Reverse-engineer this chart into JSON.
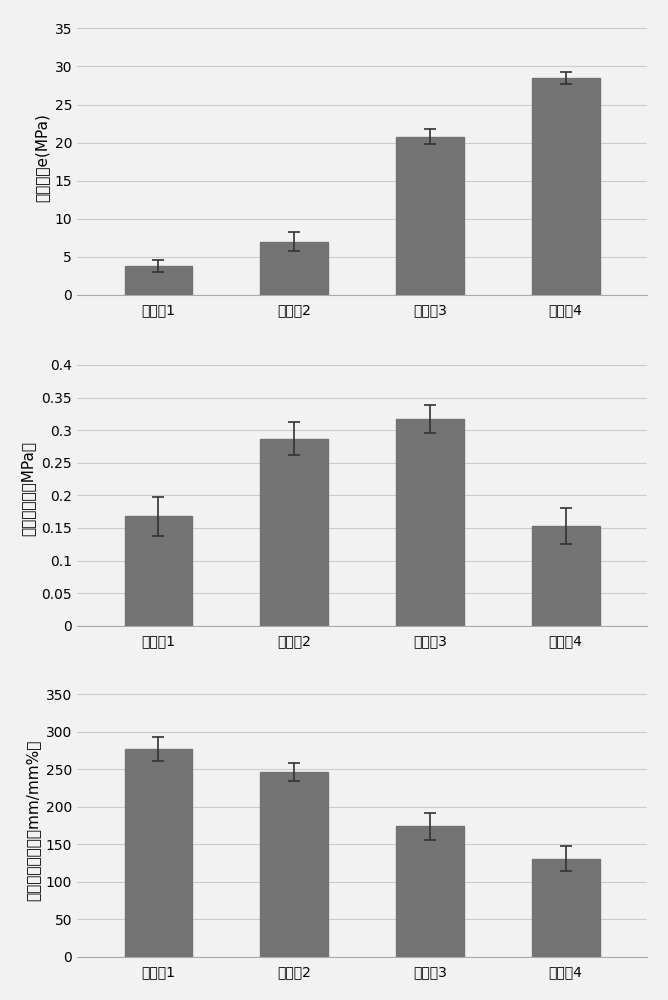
{
  "categories": [
    "实施例1",
    "实施例2",
    "实施例3",
    "实施例4"
  ],
  "chart1": {
    "values": [
      3.8,
      7.0,
      20.8,
      28.5
    ],
    "errors": [
      0.8,
      1.2,
      1.0,
      0.8
    ],
    "ylabel": "弹性模量e(MPa)",
    "yticks": [
      0,
      5,
      10,
      15,
      20,
      25,
      30,
      35
    ],
    "ylim": [
      0,
      36
    ]
  },
  "chart2": {
    "values": [
      0.168,
      0.287,
      0.317,
      0.153
    ],
    "errors": [
      0.03,
      0.025,
      0.022,
      0.028
    ],
    "ylabel": "断裂点应力（MPa）",
    "yticks": [
      0,
      0.05,
      0.1,
      0.15,
      0.2,
      0.25,
      0.3,
      0.35,
      0.4
    ],
    "ylim": [
      0,
      0.42
    ]
  },
  "chart3": {
    "values": [
      277,
      246,
      174,
      131
    ],
    "errors": [
      16,
      12,
      18,
      16
    ],
    "ylabel": "断裂点断裂伸长（mm/mm%）",
    "yticks": [
      0,
      50,
      100,
      150,
      200,
      250,
      300,
      350
    ],
    "ylim": [
      0,
      365
    ]
  },
  "bar_color": "#737373",
  "bar_width": 0.5,
  "background_color": "#f2f2f2",
  "grid_color": "#cccccc",
  "errorbar_color": "#333333",
  "tick_fontsize": 10,
  "label_fontsize": 11
}
